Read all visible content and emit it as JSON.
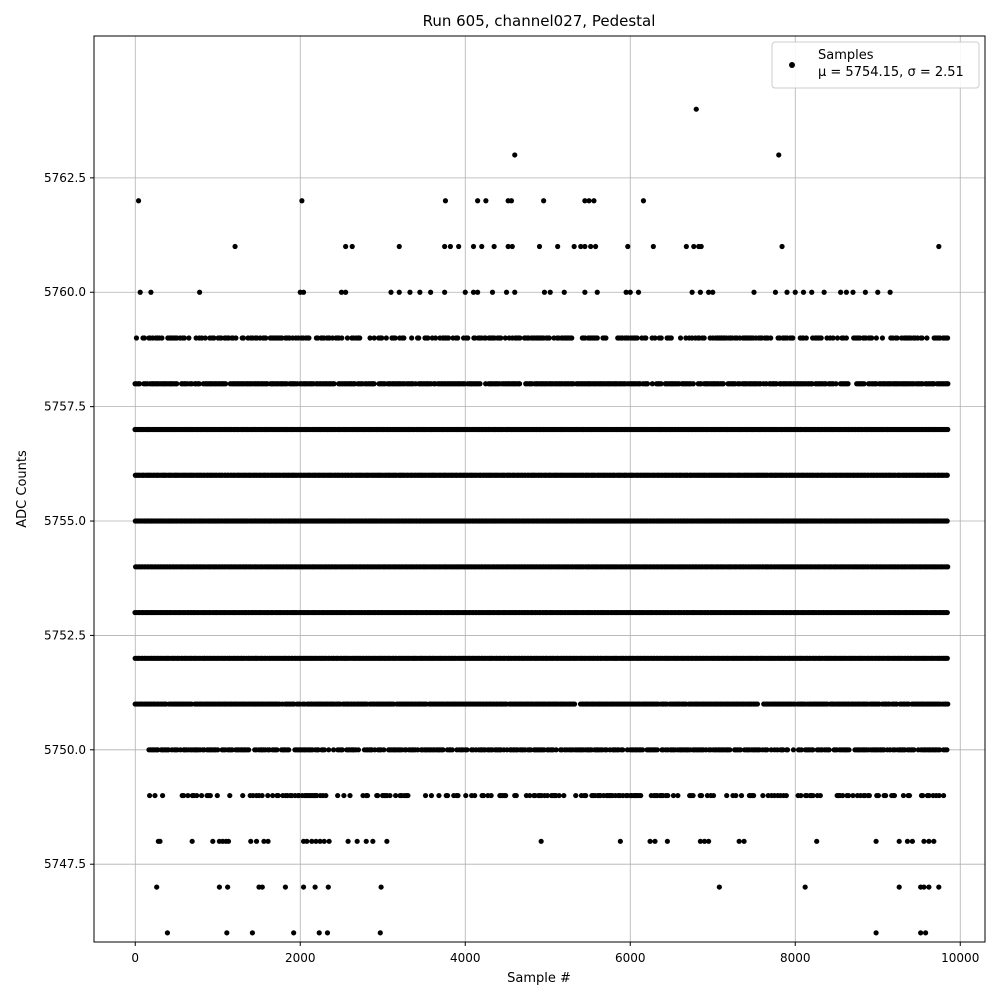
{
  "chart_data": {
    "type": "scatter",
    "title": "Run 605, channel027, Pedestal",
    "xlabel": "Sample #",
    "ylabel": "ADC Counts",
    "xlim": [
      -500,
      10300
    ],
    "ylim": [
      5745.8,
      5765.6
    ],
    "x_ticks": [
      0,
      2000,
      4000,
      6000,
      8000,
      10000
    ],
    "x_tick_labels": [
      "0",
      "2000",
      "4000",
      "6000",
      "8000",
      "10000"
    ],
    "y_ticks": [
      5747.5,
      5750.0,
      5752.5,
      5755.0,
      5757.5,
      5760.0,
      5762.5
    ],
    "y_tick_labels": [
      "5747.5",
      "5750.0",
      "5752.5",
      "5755.0",
      "5757.5",
      "5760.0",
      "5762.5"
    ],
    "grid": true,
    "legend_position": "top-right",
    "marker_color": "#000000",
    "series": [
      {
        "name": "Samples",
        "stats_label": "μ = 5754.15, σ = 2.51",
        "mean": 5754.15,
        "std": 2.51,
        "x_range": [
          0,
          9850
        ],
        "levels": [
          {
            "y": 5764,
            "x": [
              6800
            ]
          },
          {
            "y": 5763,
            "x": [
              4600,
              7800
            ]
          },
          {
            "y": 5762,
            "x": [
              40,
              2020,
              3760,
              4150,
              4250,
              4520,
              4560,
              4950,
              5450,
              5500,
              5560,
              6160
            ]
          },
          {
            "y": 5761,
            "x": [
              1210,
              2550,
              2630,
              3200,
              3750,
              3820,
              3920,
              4100,
              4200,
              4350,
              4520,
              4570,
              4900,
              5120,
              5320,
              5400,
              5450,
              5520,
              5580,
              5970,
              6280,
              6680,
              6770,
              6830,
              6860,
              7840,
              9740
            ]
          },
          {
            "y": 5760,
            "x": [
              60,
              190,
              780,
              2000,
              2040,
              2500,
              2550,
              3100,
              3200,
              3330,
              3450,
              3580,
              3750,
              4000,
              4100,
              4150,
              4330,
              4500,
              4600,
              4960,
              5030,
              5200,
              5450,
              5600,
              5950,
              6000,
              6100,
              6750,
              6850,
              6950,
              7000,
              7500,
              7760,
              7900,
              8000,
              8100,
              8200,
              8350,
              8550,
              8620,
              8700,
              8850,
              9000,
              9150
            ]
          },
          {
            "y": 5759,
            "x_spans": [
              [
                0,
                9850
              ]
            ],
            "density": 0.55
          },
          {
            "y": 5758,
            "x_spans": [
              [
                0,
                9850
              ]
            ],
            "density": 0.85
          },
          {
            "y": 5757,
            "x_spans": [
              [
                0,
                9850
              ]
            ],
            "density": 1.0
          },
          {
            "y": 5756,
            "x_spans": [
              [
                0,
                9850
              ]
            ],
            "density": 1.0
          },
          {
            "y": 5755,
            "x_spans": [
              [
                0,
                9850
              ]
            ],
            "density": 1.0
          },
          {
            "y": 5754,
            "x_spans": [
              [
                0,
                9850
              ]
            ],
            "density": 1.0
          },
          {
            "y": 5753,
            "x_spans": [
              [
                0,
                9850
              ]
            ],
            "density": 1.0
          },
          {
            "y": 5752,
            "x_spans": [
              [
                0,
                9850
              ]
            ],
            "density": 1.0
          },
          {
            "y": 5751,
            "x_spans": [
              [
                0,
                9850
              ]
            ],
            "density": 0.95
          },
          {
            "y": 5750,
            "x_spans": [
              [
                170,
                9850
              ]
            ],
            "density": 0.75
          },
          {
            "y": 5749,
            "x_spans": [
              [
                170,
                9850
              ]
            ],
            "density": 0.35
          },
          {
            "y": 5748,
            "x": [
              280,
              300,
              690,
              940,
              1020,
              1060,
              1100,
              1130,
              1400,
              1470,
              1560,
              1610,
              2040,
              2080,
              2140,
              2190,
              2240,
              2290,
              2350,
              2580,
              2690,
              2800,
              2880,
              3050,
              4920,
              5880,
              6240,
              6300,
              6450,
              6850,
              6900,
              6950,
              7320,
              7380,
              8260,
              8980,
              9260,
              9360,
              9420,
              9560,
              9620,
              9680
            ]
          },
          {
            "y": 5747,
            "x": [
              260,
              1020,
              1120,
              1500,
              1540,
              1820,
              2040,
              2180,
              2340,
              2980,
              7080,
              8120,
              9260,
              9520,
              9560,
              9620,
              9740
            ]
          },
          {
            "y": 5746,
            "x": [
              390,
              1110,
              1420,
              1920,
              2230,
              2330,
              2970,
              8980,
              9520,
              9580
            ]
          }
        ]
      }
    ]
  }
}
